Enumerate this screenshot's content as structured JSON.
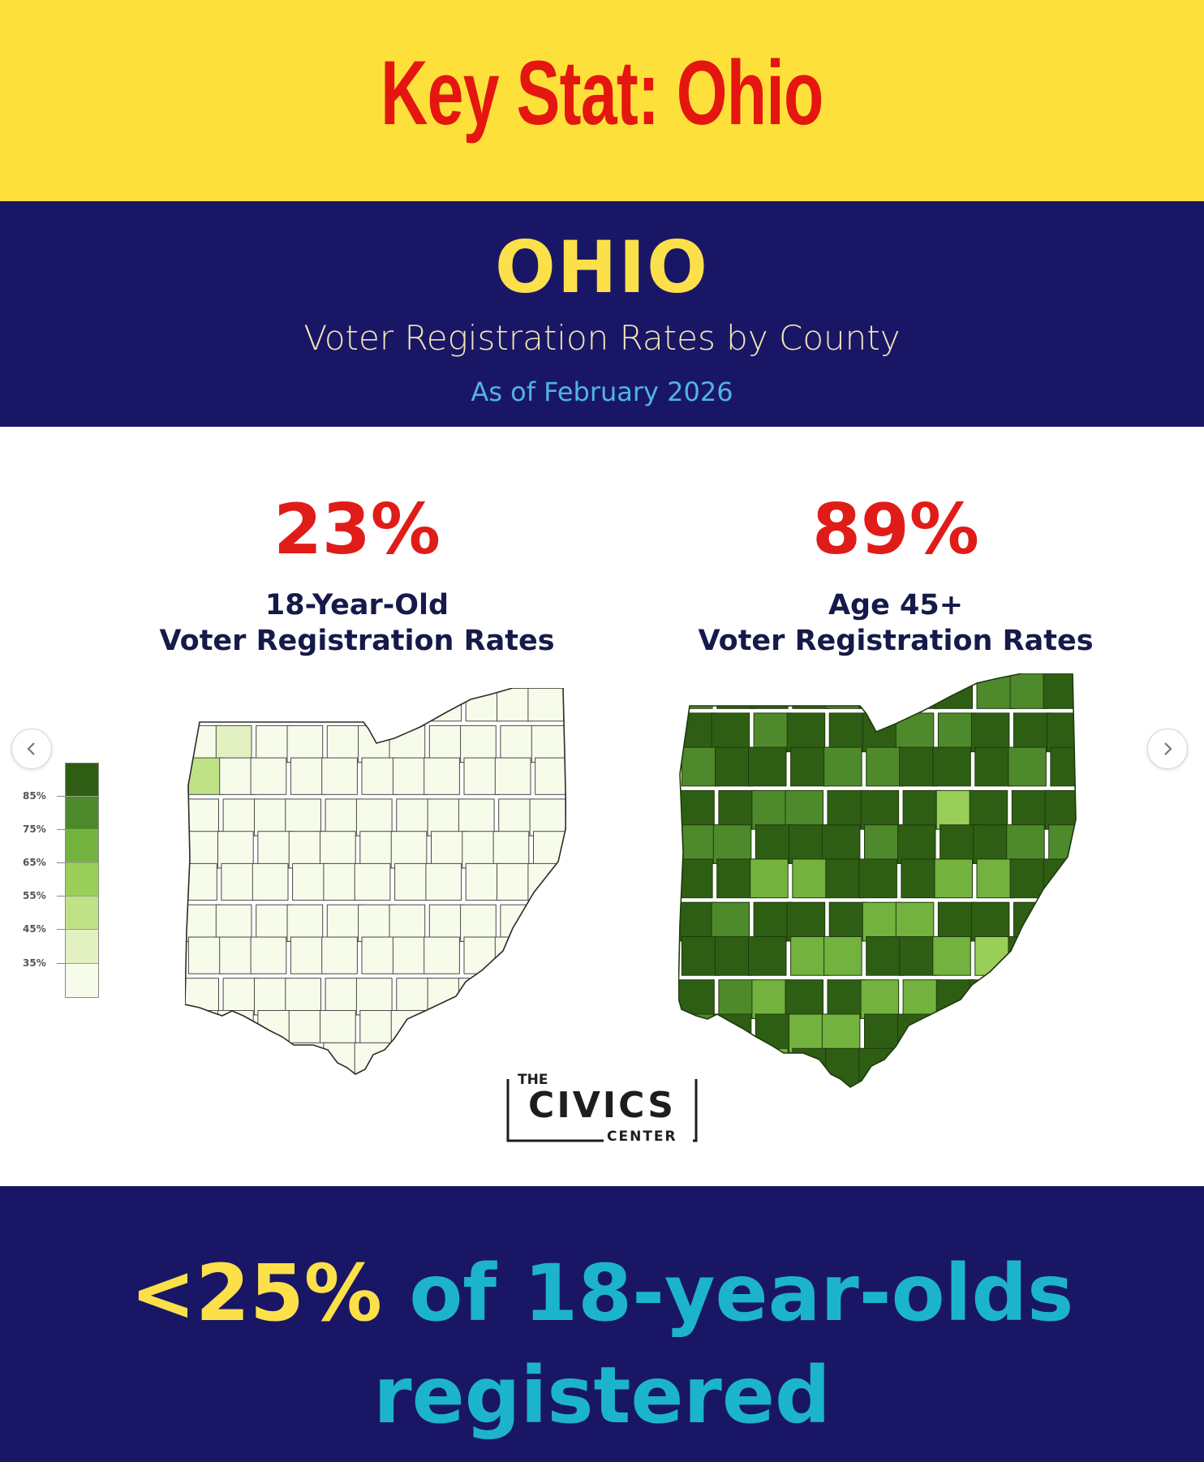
{
  "banner": {
    "title": "Key Stat: Ohio"
  },
  "header": {
    "state": "OHIO",
    "subtitle": "Voter Registration Rates by County",
    "as_of": "As of February 2026"
  },
  "stats": [
    {
      "value": "23%",
      "label_line1": "18-Year-Old",
      "label_line2": "Voter Registration Rates"
    },
    {
      "value": "89%",
      "label_line1": "Age 45+",
      "label_line2": "Voter Registration Rates"
    }
  ],
  "legend": {
    "ticks": [
      "85%",
      "75%",
      "65%",
      "55%",
      "45%",
      "35%"
    ],
    "colors": [
      "#2e5e14",
      "#4e8a2b",
      "#74b23f",
      "#99ce58",
      "#c0e287",
      "#e3f1c2",
      "#f6fbea"
    ]
  },
  "colors": {
    "banner_bg": "#fde13a",
    "title_red": "#e4160f",
    "navy": "#1a1666",
    "stat_red": "#e01c19",
    "footer_yellow": "#fce04a",
    "footer_cyan": "#1cb4cc"
  },
  "logo": {
    "top": "THE",
    "main": "CIVICS",
    "bottom": "CENTER"
  },
  "carousel": {
    "prev_icon": "chevron-left-icon",
    "next_icon": "chevron-right-icon"
  },
  "footer": {
    "highlight": "<25%",
    "line1_rest": " of 18-year-olds",
    "line2": "registered"
  }
}
